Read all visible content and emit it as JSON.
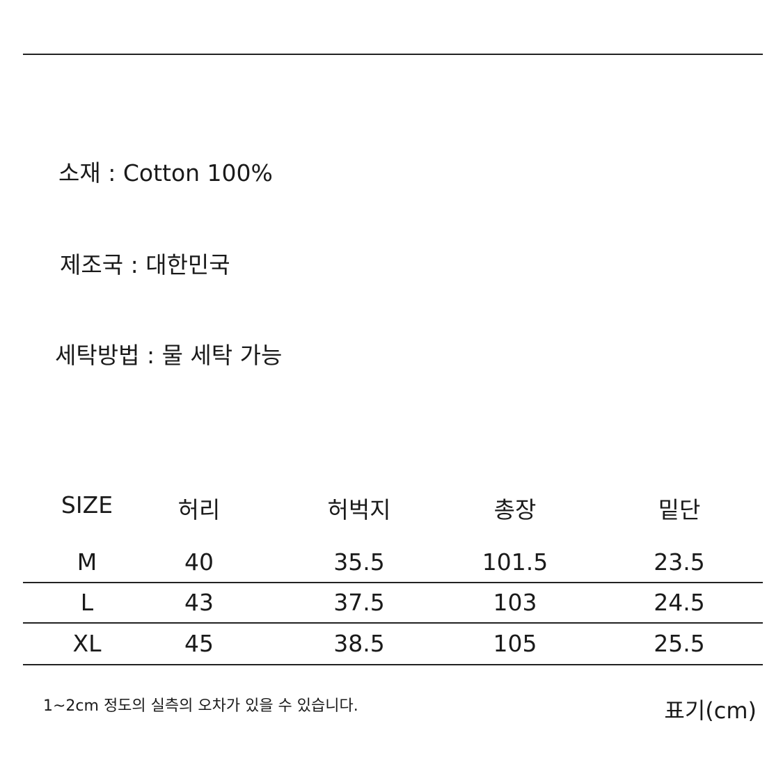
{
  "info": [
    {
      "label": "소재",
      "value": "Cotton 100%"
    },
    {
      "label": "제조국",
      "value": "대한민국"
    },
    {
      "label": "세탁방법",
      "value": "물 세탁 가능"
    }
  ],
  "size_table": {
    "headers": [
      "SIZE",
      "허리",
      "허벅지",
      "총장",
      "밑단"
    ],
    "rows": [
      [
        "M",
        "40",
        "35.5",
        "101.5",
        "23.5"
      ],
      [
        "L",
        "43",
        "37.5",
        "103",
        "24.5"
      ],
      [
        "XL",
        "45",
        "38.5",
        "105",
        "25.5"
      ]
    ]
  },
  "footnote": "1~2cm 정도의 실측의 오차가 있을 수 있습니다.",
  "unit_label": "표기(cm)",
  "colors": {
    "text": "#1a1a1a",
    "rule": "#222222",
    "background": "#ffffff"
  }
}
